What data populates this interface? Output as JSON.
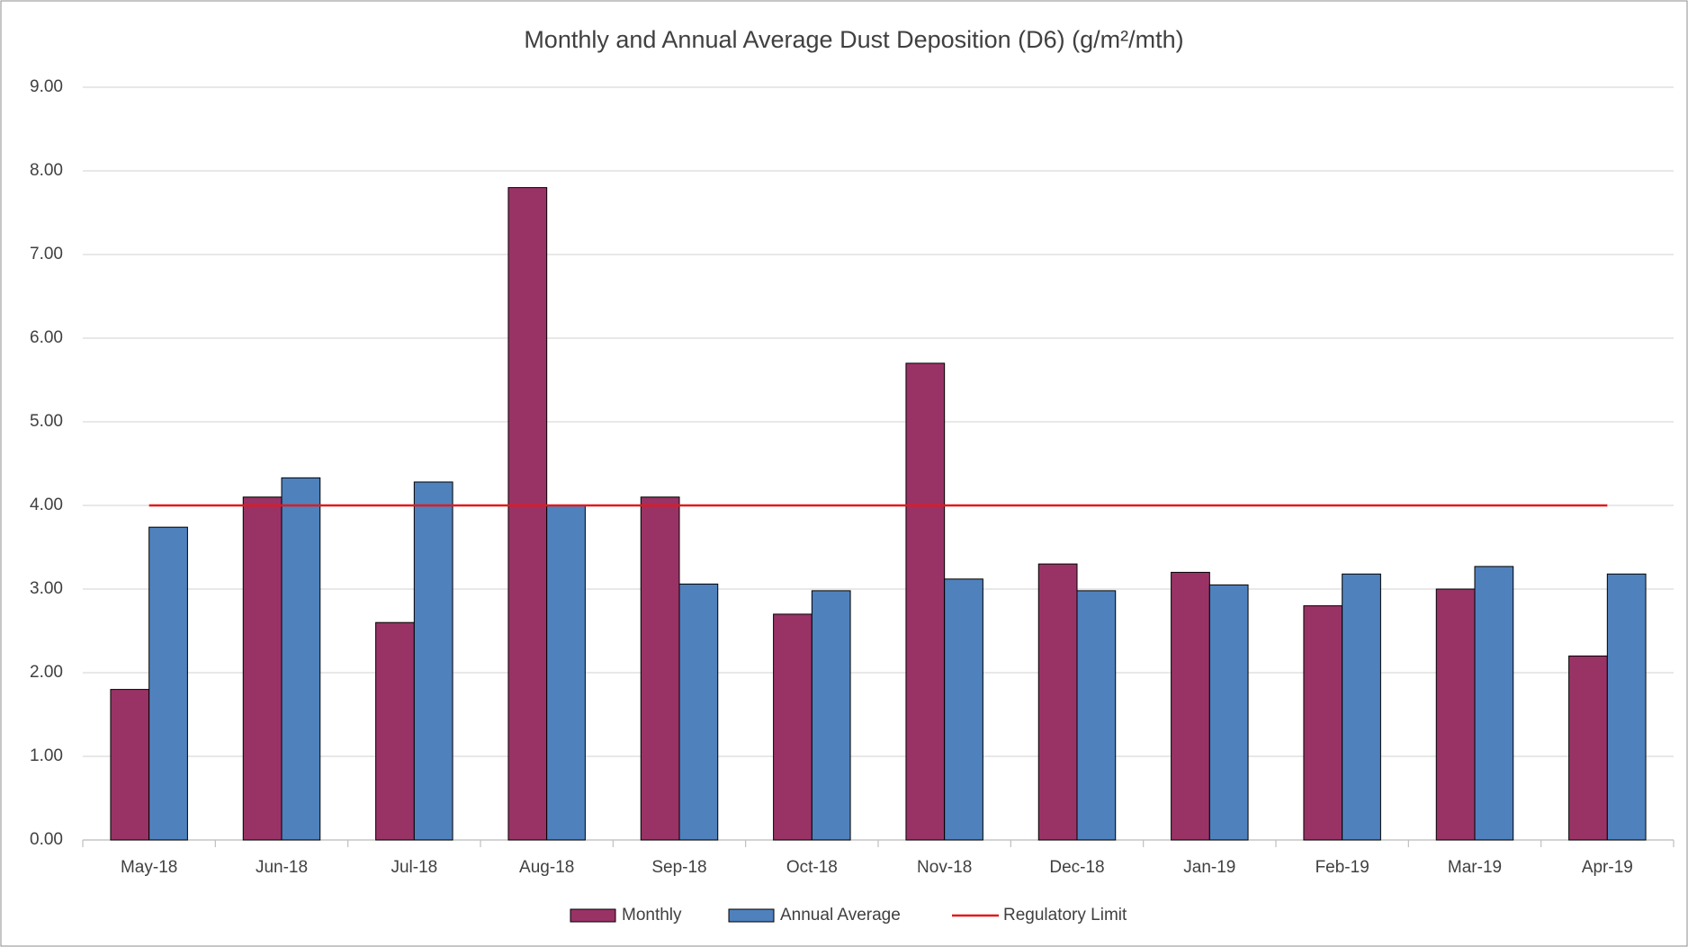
{
  "chart_data": {
    "type": "bar",
    "title": "Monthly and Annual Average Dust Deposition (D6) (g/m²/mth)",
    "categories": [
      "May-18",
      "Jun-18",
      "Jul-18",
      "Aug-18",
      "Sep-18",
      "Oct-18",
      "Nov-18",
      "Dec-18",
      "Jan-19",
      "Feb-19",
      "Mar-19",
      "Apr-19"
    ],
    "series": [
      {
        "name": "Monthly",
        "type": "bar",
        "color": "#993366",
        "values": [
          1.8,
          4.1,
          2.6,
          7.8,
          4.1,
          2.7,
          5.7,
          3.3,
          3.2,
          2.8,
          3.0,
          2.2
        ]
      },
      {
        "name": "Annual Average",
        "type": "bar",
        "color": "#4f81bd",
        "values": [
          3.74,
          4.33,
          4.28,
          4.0,
          3.06,
          2.98,
          3.12,
          2.98,
          3.05,
          3.18,
          3.27,
          3.18
        ]
      },
      {
        "name": "Regulatory Limit",
        "type": "line",
        "color": "#e31a1c",
        "values": [
          4,
          4,
          4,
          4,
          4,
          4,
          4,
          4,
          4,
          4,
          4,
          4
        ]
      }
    ],
    "ylim": [
      0,
      9
    ],
    "yticks": [
      {
        "value": 0,
        "label": "0.00"
      },
      {
        "value": 1,
        "label": "1.00"
      },
      {
        "value": 2,
        "label": "2.00"
      },
      {
        "value": 3,
        "label": "3.00"
      },
      {
        "value": 4,
        "label": "4.00"
      },
      {
        "value": 5,
        "label": "5.00"
      },
      {
        "value": 6,
        "label": "6.00"
      },
      {
        "value": 7,
        "label": "7.00"
      },
      {
        "value": 8,
        "label": "8.00"
      },
      {
        "value": 9,
        "label": "9.00"
      }
    ],
    "grid": true,
    "legend": "bottom"
  }
}
